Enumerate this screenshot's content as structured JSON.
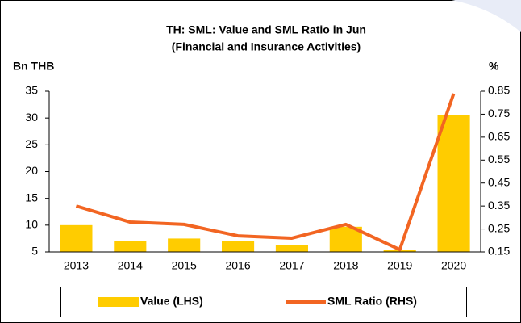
{
  "chart_data": {
    "type": "bar",
    "title": "TH: SML: Value and SML Ratio in Jun",
    "subtitle": "(Financial and Insurance Activities)",
    "y_label": "Bn THB",
    "y2_label": "%",
    "categories": [
      "2013",
      "2014",
      "2015",
      "2016",
      "2017",
      "2018",
      "2019",
      "2020"
    ],
    "series": [
      {
        "name": "Value (LHS)",
        "type": "bar",
        "color": "#ffcc00",
        "values": [
          10,
          7.1,
          7.5,
          7.1,
          6.3,
          9.7,
          5.3,
          30.6
        ]
      },
      {
        "name": "SML Ratio (RHS)",
        "type": "line",
        "axis": "y2",
        "color": "#f26522",
        "values": [
          0.35,
          0.28,
          0.27,
          0.22,
          0.21,
          0.27,
          0.16,
          0.84
        ]
      }
    ],
    "ylim": [
      5,
      35
    ],
    "yticks": [
      5,
      10,
      15,
      20,
      25,
      30,
      35
    ],
    "y2lim": [
      0.15,
      0.85
    ],
    "y2ticks": [
      0.15,
      0.25,
      0.35,
      0.45,
      0.55,
      0.65,
      0.75,
      0.85
    ],
    "grid": false,
    "legend": "bottom"
  }
}
